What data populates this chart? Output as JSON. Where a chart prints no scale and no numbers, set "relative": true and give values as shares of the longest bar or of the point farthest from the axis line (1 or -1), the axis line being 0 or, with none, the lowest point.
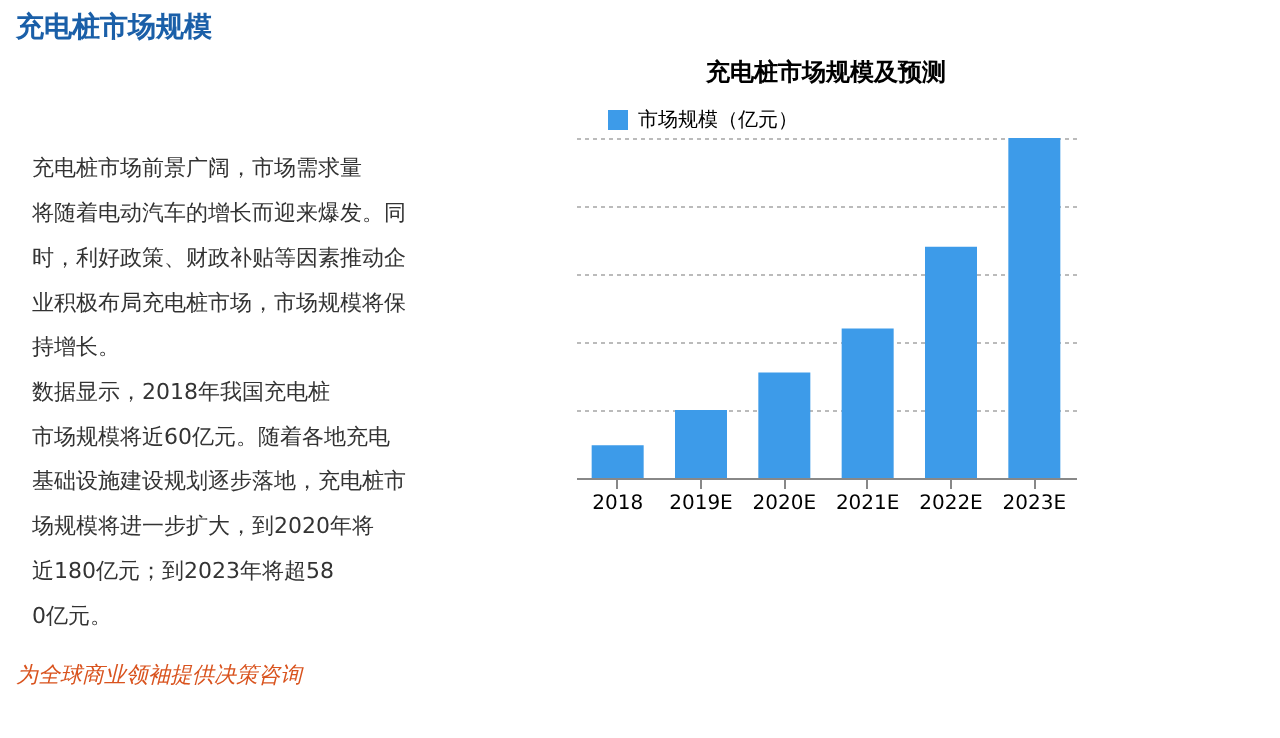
{
  "chart_data": {
    "type": "bar",
    "title": "充电桩市场规模",
    "subtitle": "充电桩市场规模及预测",
    "categories": [
      "2018",
      "2019E",
      "2020E",
      "2021E",
      "2022E",
      "2023E"
    ],
    "series": [
      {
        "name": "市场规模（亿元）",
        "color": "#3d9be9",
        "values": [
          0.096,
          0.2,
          0.31,
          0.44,
          0.68,
          1.0
        ]
      }
    ],
    "relative": true,
    "grid": "y",
    "legend": "top left",
    "annotations": [
      "充电桩市场前景广阔，市场需求量将随着电动汽车的增长而迎来爆发。同时，利好政策、财政补贴等因素推动企业积极布局充电桩市场，市场规模将保持增长。",
      "数据显示，2018年我国充电桩市场规模将近60亿元。随着各地充电基础设施建设规划逐步落地，充电桩市场规模将进一步扩大，到2020年将近180亿元；到2023年将超580亿元。",
      "为全球商业领袖提供决策咨询"
    ]
  }
}
